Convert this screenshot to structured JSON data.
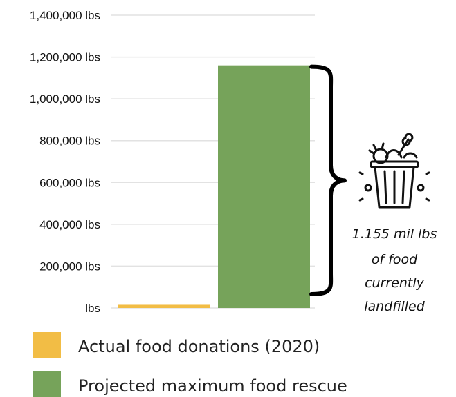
{
  "chart_data": {
    "type": "bar",
    "categories": [
      "Actual food donations (2020)",
      "Projected maximum food rescue"
    ],
    "values": [
      15000,
      1160000
    ],
    "ylim": [
      0,
      1400000
    ],
    "yticks": [
      0,
      200000,
      400000,
      600000,
      800000,
      1000000,
      1200000,
      1400000
    ],
    "ytick_labels": [
      "lbs",
      "200,000 lbs",
      "400,000 lbs",
      "600,000 lbs",
      "800,000 lbs",
      "1,000,000 lbs",
      "1,200,000 lbs",
      "1,400,000 lbs"
    ],
    "colors": [
      "#f2bd45",
      "#76a35a"
    ],
    "grid": true,
    "legend": {
      "placement": "bottom-left",
      "entries": [
        "Actual food donations (2020)",
        "Projected maximum food rescue"
      ]
    },
    "annotation": {
      "lines": [
        "1.155 mil lbs",
        "of food",
        "currently",
        "landfilled"
      ],
      "icon": "trash-bin-food-icon"
    }
  }
}
